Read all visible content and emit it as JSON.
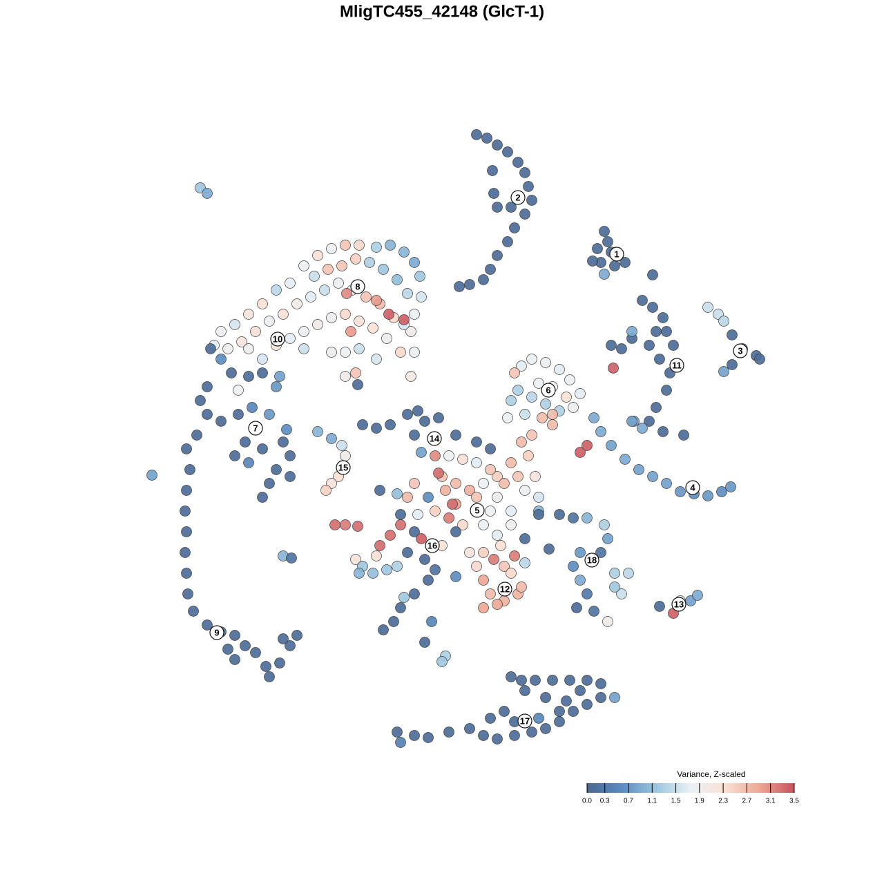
{
  "chart_data": {
    "type": "scatter",
    "title": "MligTC455_42148 (GlcT-1)",
    "xlim": [
      -46,
      46
    ],
    "ylim": [
      -46,
      46
    ],
    "x": [
      5,
      6.5,
      8,
      9.5,
      11,
      12,
      12.5,
      13,
      12,
      10.5,
      9.5,
      8,
      7,
      6,
      4,
      2.5,
      8,
      10,
      7.5,
      7.3,
      23.5,
      24,
      22.5,
      23,
      25,
      26.5,
      24.5,
      23.5,
      30.5,
      21.8,
      29,
      30.5,
      32,
      31,
      30,
      31.5,
      33,
      32.5,
      31,
      30,
      32,
      35,
      27.5,
      26,
      24.5,
      27.8,
      24.8,
      32.5,
      33.5,
      27.5,
      38.5,
      40,
      40.8,
      42,
      43.5,
      45.5,
      46,
      42,
      40.8,
      11.5,
      13,
      15,
      17,
      18.5,
      20,
      19,
      17,
      15,
      13,
      11,
      10,
      9.5,
      12,
      14,
      16,
      18,
      10.5,
      14.5,
      16,
      13,
      11.5,
      12.5,
      10,
      11,
      8,
      13.5,
      16,
      22,
      23,
      24.5,
      26.5,
      28.5,
      30.5,
      32.5,
      34.5,
      36.5,
      38.5,
      40.5,
      41.8,
      27.5,
      29,
      20,
      21,
      -20,
      -18,
      -16,
      -14,
      -12,
      -9.5,
      -7.5,
      -5.5,
      -4,
      -3.2,
      -3,
      -4,
      -4.5,
      -4,
      -4.5,
      -18.5,
      -16.5,
      -14.5,
      -12.5,
      -10.5,
      -8.5,
      -6.5,
      -5,
      -22,
      -24,
      -26,
      -28,
      -30,
      -32,
      -33,
      -31,
      -29,
      -27,
      -25,
      -23,
      -21,
      -19,
      -17,
      -15,
      -13,
      -11,
      -9,
      -7,
      -5.5,
      -22,
      -20,
      -18,
      -16,
      -14,
      -12,
      -10,
      -8,
      -6,
      -14,
      -12,
      -16,
      -20,
      -24,
      -28,
      -26,
      -14,
      -12.5,
      -9.5,
      -13.8,
      -9.5,
      -7.7,
      -5.5,
      -13.2,
      -12.2,
      -33.5,
      -32,
      -30.5,
      -28,
      -26,
      -34,
      -35,
      -34,
      -32,
      -29.5,
      -27.5,
      -25,
      -23,
      -22,
      -24,
      -25,
      -26,
      -28,
      -30,
      -28.5,
      -26,
      -22,
      -35.5,
      -24,
      -23.5,
      -22.5,
      -29.5,
      -37,
      -36.5,
      -37,
      -37.2,
      -37,
      -37.2,
      -37,
      -36.8,
      -36,
      -34,
      -32,
      -30,
      -28.5,
      -30,
      -27,
      -25.5,
      -25,
      -23.5,
      -22,
      -21,
      -23,
      -31,
      -42,
      -35,
      -34,
      -23,
      -21.8,
      -18,
      -16,
      -14.5,
      -14,
      -15,
      -16,
      -16.8,
      -11.5,
      -9.5,
      -7.5,
      -5,
      -3.5,
      -2.5,
      -4,
      -0.5,
      2,
      5,
      7,
      -3,
      -1,
      -9,
      1,
      3,
      5,
      7,
      9,
      12,
      14,
      0,
      2,
      4,
      6,
      8,
      10,
      2,
      5,
      7,
      10,
      -2,
      -4,
      -5,
      -3.5,
      -1,
      1,
      3,
      6,
      8,
      -0.5,
      1.5,
      -6.5,
      14,
      12,
      0.5,
      -6,
      -4,
      -5,
      -2.5,
      0,
      2,
      -7.5,
      -9,
      -6,
      -3,
      -1,
      -12.5,
      -11.5,
      -10,
      -8,
      -6.5,
      -9.5,
      -12,
      -15.5,
      -14,
      -12.2,
      6,
      7.5,
      9,
      10,
      6,
      7,
      9,
      11,
      11.5,
      6,
      8,
      5,
      4,
      8.5,
      10.5,
      12,
      -2,
      -4,
      -6,
      -7,
      -8.5,
      -1.5,
      -2.5,
      0.5,
      0,
      -5.5,
      2,
      17,
      19,
      21,
      23.5,
      24,
      23,
      20,
      19,
      20,
      21,
      19.5,
      22,
      24,
      25,
      27,
      26,
      25,
      15.5,
      14,
      31.5,
      33.5,
      36,
      37,
      34.5,
      -6.5,
      -4,
      -2,
      1,
      4,
      6,
      8,
      10.5,
      13,
      15,
      17,
      19,
      21,
      23,
      25,
      23,
      21,
      18.5,
      16,
      13.5,
      11.5,
      10,
      12,
      15,
      18,
      9,
      7,
      14,
      17,
      20,
      -6,
      10.5
    ],
    "y": [
      43.5,
      43,
      42,
      41,
      39.5,
      38,
      36,
      34,
      32,
      30,
      28,
      26,
      24,
      22.5,
      21.8,
      21.5,
      33,
      33,
      35,
      38.3,
      29.5,
      28,
      27,
      25,
      24.5,
      25,
      26.5,
      23.3,
      23.2,
      25.2,
      19.5,
      18.5,
      17,
      15,
      13,
      11,
      9,
      6.5,
      4,
      2,
      0.5,
      0,
      14,
      12.5,
      13,
      2,
      9.7,
      15,
      13,
      15,
      18.5,
      17.5,
      16.5,
      14.5,
      12.5,
      11.5,
      11,
      10.2,
      9.2,
      10,
      11,
      10.5,
      9.5,
      8,
      6,
      4,
      3.5,
      4.5,
      5.5,
      6.5,
      5,
      2.5,
      3,
      7.5,
      7,
      5.5,
      9,
      2.5,
      1.5,
      0,
      -1,
      -3,
      -4,
      -6,
      -6,
      -6,
      3,
      2.5,
      0.5,
      -1.5,
      -3.5,
      -5,
      -6,
      -7,
      -8.2,
      -8.5,
      -8.8,
      -8.2,
      -7.5,
      2,
      1,
      -2.5,
      -1.5,
      24.5,
      26,
      27,
      27.5,
      27.5,
      27.2,
      27.5,
      26.5,
      25,
      23,
      20,
      17.5,
      15,
      12,
      8.5,
      23,
      24,
      24.5,
      25.5,
      25,
      24,
      22.5,
      20.5,
      22,
      21,
      19,
      17.5,
      16,
      15,
      13,
      12.5,
      13.5,
      15,
      16.5,
      17.5,
      19,
      20,
      21,
      22,
      21,
      20,
      19,
      17,
      16,
      14,
      15,
      16,
      17,
      17.5,
      16.5,
      15.5,
      14,
      12,
      12,
      12.5,
      12,
      12.5,
      13,
      12.5,
      11,
      8.5,
      9,
      11,
      20.5,
      19.5,
      17.5,
      16.7,
      15,
      7.3,
      12.5,
      11,
      9,
      8.5,
      9,
      7,
      5,
      3,
      2,
      3,
      4,
      3,
      -1,
      -3,
      -5,
      -7,
      -9,
      -4,
      -3,
      -1,
      -2,
      -6,
      0,
      7,
      8.5,
      0.8,
      6.5,
      -2,
      -5,
      -8,
      -11,
      -14,
      -17,
      -20,
      -23,
      -25.5,
      -27.5,
      -28.5,
      -29,
      -30.5,
      -32.5,
      -31.5,
      -33.5,
      -35,
      -33,
      -30.5,
      -29,
      -29.5,
      -31,
      -5.8,
      35.8,
      35,
      -17.5,
      -17.8,
      0.5,
      -0.5,
      -1.5,
      -3,
      -6,
      -7,
      -8,
      1.5,
      1,
      1.5,
      3,
      3.5,
      2,
      0,
      2.5,
      0,
      -1,
      -2,
      -2.5,
      -3,
      -8,
      -3,
      -3.5,
      -4,
      -5,
      -7,
      -8,
      -9,
      -6,
      -7,
      -8,
      -7,
      -9,
      -11,
      -10,
      -9,
      -11,
      -13,
      -9,
      -7,
      -9,
      -11.5,
      -11,
      -12,
      -13,
      -13,
      -14.5,
      -5.5,
      -10,
      -8.5,
      -11,
      -15,
      -8,
      -11.5,
      -14,
      -17,
      -18,
      -16,
      -14,
      -14.5,
      -16,
      -13,
      -15,
      -19.5,
      -18,
      -19,
      -20,
      -19.5,
      -19,
      -17.5,
      -20,
      -13,
      -13,
      -13.2,
      -17,
      -18,
      -19,
      -20,
      -21,
      -23,
      -24,
      -23,
      -22,
      -25,
      -24.5,
      -19,
      -17,
      -16,
      -17.5,
      -18.5,
      -21,
      -23,
      -25,
      -27,
      -28.2,
      -27,
      -30,
      -32,
      -32.8,
      -23.5,
      -20.5,
      -11.5,
      -12,
      -12,
      -13,
      -15,
      -17,
      -17,
      -19,
      -21,
      -23,
      -25,
      -25.5,
      -27,
      -20,
      -20,
      -23,
      -22,
      -16.5,
      -11.5,
      -24.8,
      -25.8,
      -24,
      -23.2,
      -24,
      -43,
      -43.5,
      -43.8,
      -43,
      -42.5,
      -43.5,
      -44,
      -43.5,
      -43,
      -42.5,
      -41.5,
      -40,
      -39,
      -38,
      -38,
      -36,
      -35.5,
      -35.5,
      -35.5,
      -35.5,
      -35.5,
      -35,
      -37,
      -38,
      -38.5,
      -40,
      -41,
      -41,
      -40,
      -37,
      -44.5,
      -41.5
    ],
    "values": [
      0.1,
      0.1,
      0.1,
      0.1,
      0.1,
      0.1,
      0.1,
      0.1,
      0.1,
      0.1,
      0.1,
      0.1,
      0.1,
      0.1,
      0.1,
      0.1,
      0.1,
      0.1,
      0.1,
      0.1,
      0.1,
      0.1,
      0.1,
      0.1,
      0.1,
      0.1,
      0.1,
      0.9,
      0.1,
      0.1,
      0.1,
      0.1,
      0.1,
      0.1,
      0.1,
      0.1,
      0.1,
      0.1,
      0.1,
      0.1,
      0.1,
      0.1,
      0.1,
      0.1,
      0.1,
      0.9,
      3.4,
      0.1,
      0.1,
      0.9,
      1.5,
      1.5,
      1.4,
      0.1,
      0.1,
      0.1,
      0.1,
      0.1,
      0.8,
      1.7,
      1.8,
      1.8,
      1.7,
      1.8,
      1.7,
      1.9,
      1.3,
      1.3,
      1.4,
      1.3,
      1.3,
      1.8,
      1.5,
      1.8,
      1.8,
      2.3,
      2.6,
      2.7,
      2.7,
      2.6,
      2.7,
      2.5,
      2.7,
      2.6,
      2.5,
      2.2,
      2.7,
      0.9,
      0.9,
      0.8,
      0.9,
      0.8,
      0.8,
      0.8,
      0.7,
      0.6,
      0.7,
      0.6,
      0.7,
      0.8,
      0.9,
      3.4,
      3.4,
      1.8,
      2.3,
      1.8,
      2.6,
      2.4,
      1.3,
      1.0,
      1.0,
      0.9,
      1.2,
      1.6,
      1.8,
      2.0,
      1.8,
      2.1,
      1.5,
      2.6,
      2.6,
      2.5,
      1.3,
      1.2,
      1.1,
      1.4,
      1.7,
      1.4,
      2.3,
      2.2,
      1.6,
      1.8,
      1.7,
      1.9,
      2.2,
      2.3,
      1.8,
      2.3,
      2.0,
      1.7,
      1.5,
      1.8,
      1.9,
      2.6,
      2.7,
      2.4,
      1.6,
      1.7,
      1.8,
      2.0,
      1.9,
      2.4,
      2.3,
      2.3,
      1.9,
      2.4,
      1.8,
      1.5,
      1.9,
      1.5,
      2.2,
      1.9,
      1.6,
      2.0,
      2.6,
      1.6,
      3.1,
      3.0,
      3.4,
      3.4,
      3.0,
      0.1,
      0.1,
      0.6,
      0.1,
      0.1,
      0.1,
      0.1,
      0.1,
      0.1,
      0.1,
      0.1,
      0.5,
      0.7,
      0.1,
      0.1,
      0.1,
      0.1,
      0.1,
      0.5,
      0.1,
      0.1,
      0.1,
      0.1,
      0.1,
      0.7,
      0.8,
      0.6,
      1.8,
      0.1,
      0.1,
      0.1,
      0.1,
      0.1,
      0.1,
      0.1,
      0.1,
      0.1,
      0.1,
      0.1,
      0.1,
      0.1,
      0.1,
      0.1,
      0.1,
      0.1,
      0.1,
      0.1,
      0.1,
      0.1,
      0.1,
      0.8,
      1.2,
      0.9,
      1.0,
      0.2,
      1.0,
      0.9,
      1.5,
      2.0,
      2.3,
      2.2,
      2.5,
      0.1,
      0.1,
      0.1,
      0.1,
      0.1,
      0.1,
      0.1,
      0.1,
      0.1,
      0.1,
      0.1,
      0.8,
      3.1,
      0.1,
      1.8,
      2.3,
      1.7,
      2.6,
      2.7,
      1.8,
      1.6,
      2.6,
      2.7,
      2.8,
      1.8,
      1.9,
      1.7,
      3.0,
      2.6,
      1.8,
      1.9,
      0.6,
      2.6,
      2.7,
      1.7,
      2.5,
      3.2,
      2.4,
      1.8,
      1.7,
      3.3,
      3.3,
      1.1,
      1.0,
      0.1,
      2.8,
      0.1,
      0.1,
      0.1,
      0.1,
      2.3,
      0.1,
      3.3,
      3.3,
      3.3,
      3.4,
      0.2,
      2.2,
      1.2,
      1.1,
      1.2,
      1.3,
      2.3,
      1.0,
      3.3,
      3.2,
      3.3,
      2.5,
      3.2,
      2.6,
      2.4,
      2.9,
      2.7,
      2.8,
      2.8,
      2.7,
      2.9,
      2.9,
      2.4,
      2.2,
      2.3,
      3.2,
      1.4,
      0.1,
      0.1,
      0.1,
      0.1,
      0.1,
      0.5,
      0.1,
      1.3,
      1.2,
      1.2,
      0.6,
      0.1,
      0.2,
      1.0,
      1.3,
      0.8,
      0.2,
      0.7,
      0.6,
      0.9,
      0.3,
      0.1,
      0.2,
      2.0,
      1.3,
      1.4,
      1.5,
      1.2,
      0.1,
      0.1,
      0.1,
      3.4,
      0.8,
      0.9,
      1.6,
      0.1,
      0.1,
      0.1,
      0.1,
      0.1,
      0.1,
      0.1,
      0.1,
      0.1,
      0.1,
      0.1,
      0.1,
      0.1,
      0.1,
      0.8,
      0.1,
      0.1,
      0.1,
      0.1,
      0.1,
      0.1,
      0.1,
      0.1,
      0.1,
      0.1,
      0.1,
      0.1,
      0.5,
      0.1,
      0.1,
      0.4,
      0.1
    ],
    "cluster_labels": {
      "labels": [
        "1",
        "2",
        "3",
        "4",
        "5",
        "6",
        "7",
        "8",
        "9",
        "10",
        "11",
        "12",
        "13",
        "14",
        "15",
        "16",
        "17",
        "18"
      ],
      "x": [
        25.3,
        11,
        43.2,
        36.3,
        5.1,
        15.4,
        -27,
        -12.2,
        -32.6,
        -23.8,
        34,
        9.1,
        34.3,
        -1.1,
        -14.3,
        -1.4,
        12,
        21.7
      ],
      "y": [
        26.2,
        34.4,
        12.2,
        -7.6,
        -10.9,
        6.5,
        1,
        21.5,
        -28.6,
        13.9,
        10.1,
        -22.3,
        -24.5,
        -0.5,
        -4.7,
        -16,
        -41.4,
        -18.1
      ]
    },
    "colorbar": {
      "title": "Variance, Z-scaled",
      "lim": [
        0,
        3.5
      ],
      "ticks": [
        {
          "value": 0,
          "label": "0.0"
        },
        0.3,
        0.7,
        1.1,
        1.5,
        1.9,
        2.3,
        2.7,
        3.1,
        3.5
      ],
      "colors": [
        "#4a6890",
        "#5b8cc0",
        "#9cc6df",
        "#eaf1f5",
        "#f9e0d4",
        "#eda793",
        "#c8525e"
      ]
    }
  }
}
